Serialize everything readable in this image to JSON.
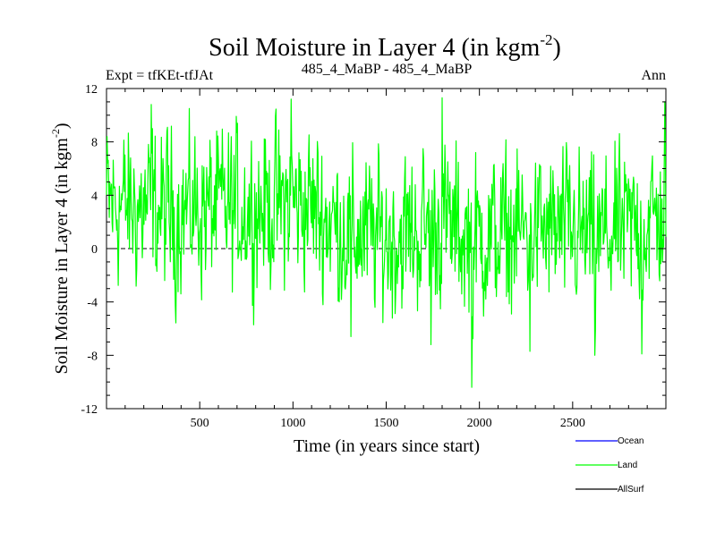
{
  "chart_data": {
    "type": "line",
    "title": "Soil Moisture in Layer 4 (in kgm",
    "title_superscript": "-2",
    "title_close": ")",
    "subtitle_left": "Expt = tfKEt-tfJAt",
    "subtitle_center": "485_4_MaBP - 485_4_MaBP",
    "subtitle_right": "Ann",
    "xlabel": "Time (in years since start)",
    "ylabel": "Soil Moisture in Layer 4 (in kgm",
    "ylabel_superscript": "-2",
    "ylabel_close": ")",
    "xlim": [
      0,
      3000
    ],
    "ylim": [
      -12,
      12
    ],
    "xticks": [
      500,
      1000,
      1500,
      2000,
      2500
    ],
    "yticks": [
      -12,
      -8,
      -4,
      0,
      4,
      8,
      12
    ],
    "zero_line": true,
    "grid": false,
    "legend_placement": "bottom-right",
    "series": [
      {
        "name": "Ocean",
        "color": "#0000ff",
        "values": []
      },
      {
        "name": "Land",
        "color": "#00ff00",
        "envelope_mean": [
          [
            0,
            3.5
          ],
          [
            150,
            3.0
          ],
          [
            300,
            2.8
          ],
          [
            450,
            2.9
          ],
          [
            600,
            3.0
          ],
          [
            750,
            3.0
          ],
          [
            900,
            3.2
          ],
          [
            1000,
            3.5
          ],
          [
            1100,
            3.2
          ],
          [
            1200,
            2.0
          ],
          [
            1300,
            1.2
          ],
          [
            1400,
            1.0
          ],
          [
            1500,
            0.8
          ],
          [
            1600,
            1.0
          ],
          [
            1700,
            1.5
          ],
          [
            1800,
            1.8
          ],
          [
            1900,
            1.0
          ],
          [
            2000,
            0.8
          ],
          [
            2100,
            1.0
          ],
          [
            2200,
            1.2
          ],
          [
            2300,
            1.5
          ],
          [
            2400,
            1.2
          ],
          [
            2500,
            1.2
          ],
          [
            2600,
            0.6
          ],
          [
            2700,
            1.0
          ],
          [
            2800,
            1.5
          ],
          [
            2900,
            2.0
          ],
          [
            3000,
            2.5
          ]
        ],
        "amplitude": 2.8,
        "extremes": [
          {
            "x": 240,
            "y": 10.8
          },
          {
            "x": 370,
            "y": -4.3
          },
          {
            "x": 990,
            "y": 11.2
          },
          {
            "x": 1310,
            "y": -6.6
          },
          {
            "x": 1740,
            "y": -7.2
          },
          {
            "x": 1800,
            "y": 11.3
          },
          {
            "x": 1960,
            "y": -10.4
          },
          {
            "x": 2270,
            "y": -7.7
          },
          {
            "x": 2620,
            "y": -8.0
          },
          {
            "x": 2870,
            "y": -7.9
          },
          {
            "x": 2995,
            "y": 11.0
          }
        ]
      },
      {
        "name": "AllSurf",
        "color": "#000000",
        "values": []
      }
    ]
  }
}
